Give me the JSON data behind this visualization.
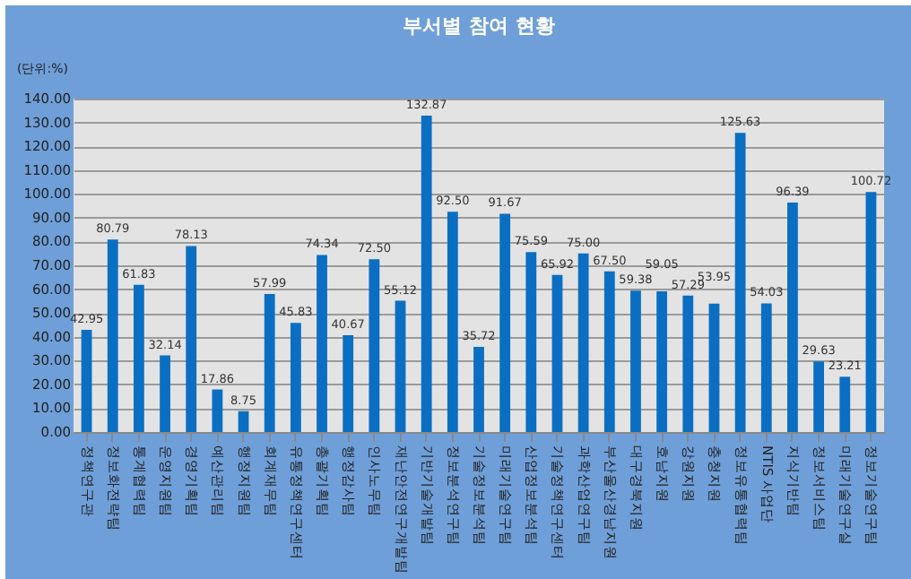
{
  "chart_data": {
    "type": "bar",
    "title": "부서별 참여 현황",
    "ylabel": "(단위:%)",
    "categories": [
      "정책연구관",
      "정보화전략팀",
      "통계협력팀",
      "운영지원팀",
      "경영기획팀",
      "예산관리팀",
      "행정지원팀",
      "회계재무팀",
      "유통정책연구센터",
      "총괄기획팀",
      "행정감사팀",
      "인사노무팀",
      "재난안전연구개발팀",
      "기반기술개발팀",
      "정보분석연구팀",
      "기술정보분석팀",
      "미래기술연구팀",
      "산업정보분석팀",
      "기술정책연구센터",
      "과학산업연구팀",
      "부산울산경남지원",
      "대구경북지원",
      "호남지원",
      "강원지원",
      "충청지원",
      "정보유통협력팀",
      "NTIS 사업단",
      "지식기반팀",
      "정보서비스팀",
      "미래기술연구실",
      "정보기술연구팀"
    ],
    "values": [
      42.95,
      80.79,
      61.83,
      32.14,
      78.13,
      17.86,
      8.75,
      57.99,
      45.83,
      74.34,
      40.67,
      72.5,
      55.12,
      132.87,
      92.5,
      35.72,
      91.67,
      75.59,
      65.92,
      75.0,
      67.5,
      59.38,
      59.05,
      57.29,
      53.95,
      125.63,
      54.03,
      96.39,
      29.63,
      23.21,
      100.72
    ],
    "color": "#0a6fc2",
    "ylim": [
      0,
      140
    ],
    "yticks": [
      {
        "value": 0,
        "label": "0.00"
      },
      {
        "value": 10,
        "label": "10.00"
      },
      {
        "value": 20,
        "label": "20.00"
      },
      {
        "value": 30,
        "label": "30.00"
      },
      {
        "value": 40,
        "label": "40.00"
      },
      {
        "value": 50,
        "label": "50.00"
      },
      {
        "value": 60,
        "label": "60.00"
      },
      {
        "value": 70,
        "label": "70.00"
      },
      {
        "value": 80,
        "label": "80.00"
      },
      {
        "value": 90,
        "label": "90.00"
      },
      {
        "value": 100,
        "label": "100.00"
      },
      {
        "value": 110,
        "label": "110.00"
      },
      {
        "value": 120,
        "label": "120.00"
      },
      {
        "value": 130,
        "label": "130.00"
      },
      {
        "value": 140,
        "label": "140.00"
      }
    ],
    "value_labels": [
      "42.95",
      "80.79",
      "61.83",
      "32.14",
      "78.13",
      "17.86",
      "8.75",
      "57.99",
      "45.83",
      "74.34",
      "40.67",
      "72.50",
      "55.12",
      "132.87",
      "92.50",
      "35.72",
      "91.67",
      "75.59",
      "65.92",
      "75.00",
      "67.50",
      "59.38",
      "59.05",
      "57.29",
      "53.95",
      "125.63",
      "54.03",
      "96.39",
      "29.63",
      "23.21",
      "100.72"
    ],
    "grid": "y"
  }
}
